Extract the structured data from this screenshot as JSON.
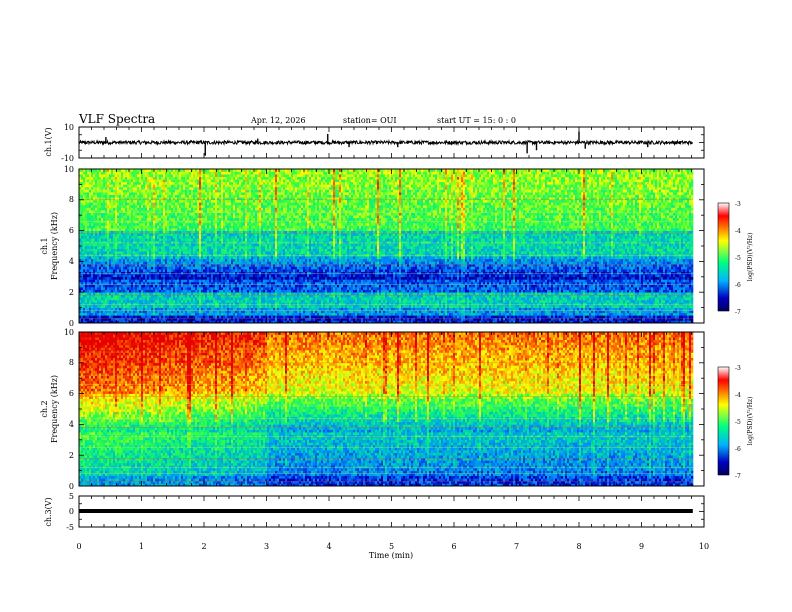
{
  "header": {
    "title": "VLF Spectra",
    "date": "Apr. 12, 2026",
    "station": "station= OUI",
    "start": "start  UT  =   15: 0   : 0"
  },
  "colors": {
    "colorbar": [
      "#ffffff",
      "#ff0000",
      "#ffff00",
      "#00ff80",
      "#00b4ff",
      "#0000c0",
      "#000060"
    ]
  },
  "chart_data": [
    {
      "type": "line",
      "name": "ch1-waveform",
      "ylabel": "ch.1(V)",
      "ylim": [
        -10,
        10
      ],
      "yticks": [
        "10",
        "-10"
      ],
      "xlim": [
        0,
        10
      ],
      "baseline": 0,
      "spikes": [
        {
          "t": 0.43,
          "v": 3.5
        },
        {
          "t": 2.02,
          "v": -8.5
        },
        {
          "t": 3.98,
          "v": 5.5
        },
        {
          "t": 4.32,
          "v": -3.0
        },
        {
          "t": 5.1,
          "v": -3.0
        },
        {
          "t": 7.17,
          "v": -7.0
        },
        {
          "t": 7.32,
          "v": -5.0
        },
        {
          "t": 8.0,
          "v": 7.0
        },
        {
          "t": 8.1,
          "v": -4.0
        },
        {
          "t": 2.86,
          "v": 2.5
        },
        {
          "t": 9.1,
          "v": -3.0
        }
      ],
      "data_end": 9.82
    },
    {
      "type": "heatmap",
      "name": "ch1-spectrogram",
      "ylabel": "ch.1\nFrequency (kHz)",
      "ylim": [
        0,
        10
      ],
      "yticks": [
        "0",
        "2",
        "4",
        "6",
        "8",
        "10"
      ],
      "xlim": [
        0,
        10
      ],
      "data_end": 9.82,
      "colorbar": {
        "label": "log(PSD)(V²/Hz)",
        "range": [
          -7,
          -3
        ],
        "ticks": [
          "-3",
          "-4",
          "-5",
          "-6",
          "-7"
        ]
      }
    },
    {
      "type": "heatmap",
      "name": "ch2-spectrogram",
      "ylabel": "ch.2\nFrequency (kHz)",
      "ylim": [
        0,
        10
      ],
      "yticks": [
        "0",
        "2",
        "4",
        "6",
        "8",
        "10"
      ],
      "xlim": [
        0,
        10
      ],
      "data_end": 9.82,
      "colorbar": {
        "label": "log(PSD)(V²/Hz)",
        "range": [
          -7,
          -3
        ],
        "ticks": [
          "-3",
          "-4",
          "-5",
          "-6",
          "-7"
        ]
      }
    },
    {
      "type": "line",
      "name": "ch3-waveform",
      "ylabel": "ch.3(V)",
      "ylim": [
        -5,
        5
      ],
      "yticks": [
        "5",
        "0",
        "-5"
      ],
      "xlim": [
        0,
        10
      ],
      "baseline": -1.2,
      "data_end": 9.82,
      "xlabel": "Time  (min)",
      "xticks": [
        "0",
        "1",
        "2",
        "3",
        "4",
        "5",
        "6",
        "7",
        "8",
        "9",
        "10"
      ]
    }
  ]
}
